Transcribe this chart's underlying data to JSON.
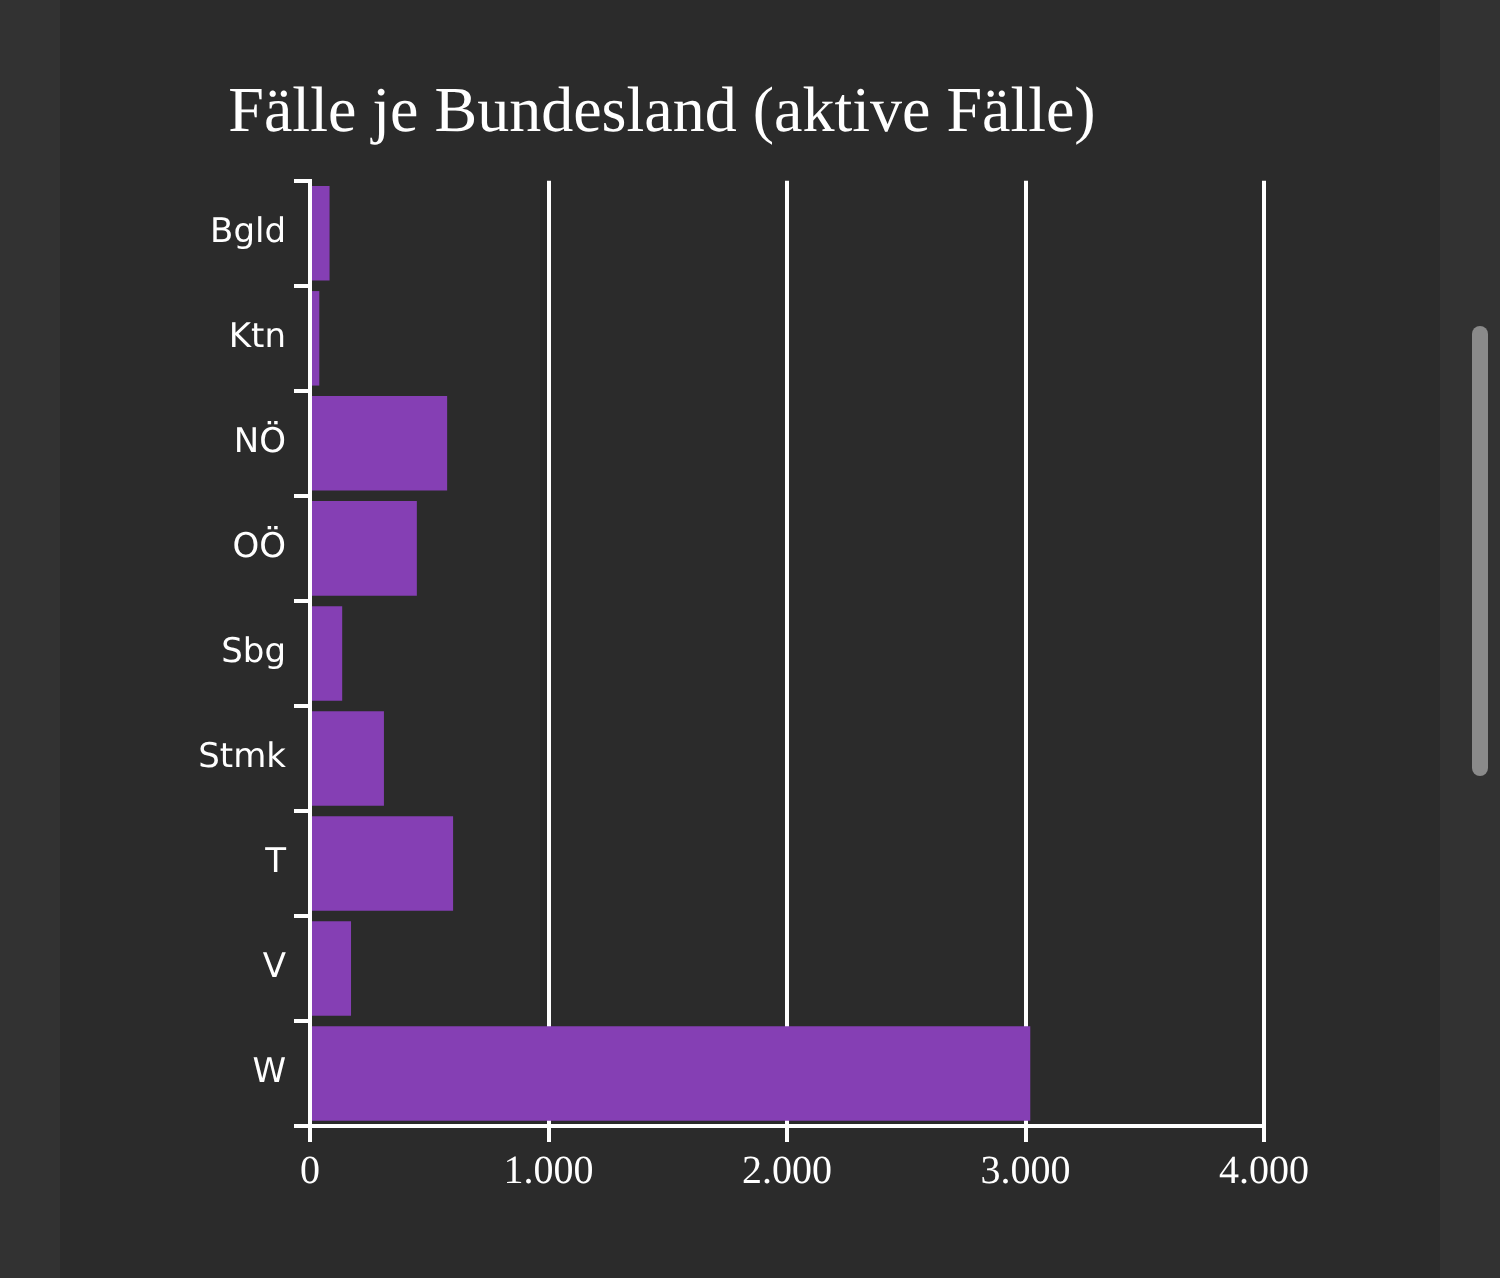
{
  "chart_data": {
    "type": "bar",
    "orientation": "horizontal",
    "title": "Fälle je Bundesland (aktive Fälle)",
    "categories": [
      "Bgld",
      "Ktn",
      "NÖ",
      "OÖ",
      "Sbg",
      "Stmk",
      "T",
      "V",
      "W"
    ],
    "values": [
      82,
      39,
      575,
      448,
      135,
      310,
      600,
      172,
      3020
    ],
    "color": "#853fb4",
    "xlim": [
      0,
      4000
    ],
    "xticks": [
      0,
      {
        "value": 1000,
        "label": "1.000"
      },
      {
        "value": 2000,
        "label": "2.000"
      },
      {
        "value": 3000,
        "label": "3.000"
      },
      {
        "value": 4000,
        "label": "4.000"
      }
    ],
    "grid": "x",
    "legend": false
  }
}
